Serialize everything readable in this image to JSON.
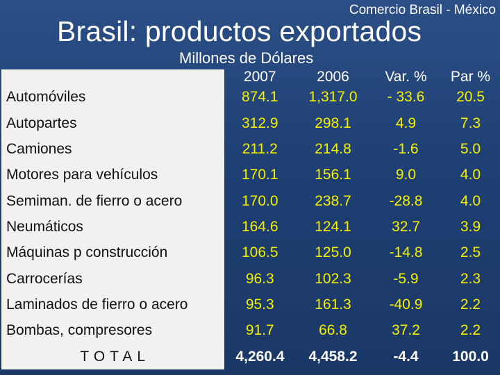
{
  "header": {
    "subtitle": "Comercio Brasil - México",
    "title": "Brasil: productos exportados",
    "unit": "Millones de Dólares"
  },
  "table": {
    "columns": [
      "",
      "2007",
      "2006",
      "Var. %",
      "Par %"
    ],
    "rows": [
      {
        "label": "Automóviles",
        "v2007": "874.1",
        "v2006": "1,317.0",
        "var": "- 33.6",
        "par": "20.5"
      },
      {
        "label": "Autopartes",
        "v2007": "312.9",
        "v2006": "298.1",
        "var": "4.9",
        "par": "7.3"
      },
      {
        "label": "Camiones",
        "v2007": "211.2",
        "v2006": "214.8",
        "var": "-1.6",
        "par": "5.0"
      },
      {
        "label": "Motores para vehículos",
        "v2007": "170.1",
        "v2006": "156.1",
        "var": "9.0",
        "par": "4.0"
      },
      {
        "label": "Semiman. de fierro o acero",
        "v2007": "170.0",
        "v2006": "238.7",
        "var": "-28.8",
        "par": "4.0"
      },
      {
        "label": "Neumáticos",
        "v2007": "164.6",
        "v2006": "124.1",
        "var": "32.7",
        "par": "3.9"
      },
      {
        "label": "Máquinas p construcción",
        "v2007": "106.5",
        "v2006": "125.0",
        "var": "-14.8",
        "par": "2.5"
      },
      {
        "label": "Carrocerías",
        "v2007": "96.3",
        "v2006": "102.3",
        "var": "-5.9",
        "par": "2.3"
      },
      {
        "label": "Laminados de fierro o acero",
        "v2007": "95.3",
        "v2006": "161.3",
        "var": "-40.9",
        "par": "2.2"
      },
      {
        "label": "Bombas, compresores",
        "v2007": "91.7",
        "v2006": "66.8",
        "var": "37.2",
        "par": "2.2"
      }
    ],
    "total": {
      "label": "TOTAL",
      "v2007": "4,260.4",
      "v2006": "4,458.2",
      "var": "-4.4",
      "par": "100.0"
    }
  },
  "colors": {
    "background": "#1e3f73",
    "values": "#f5f000",
    "label_panel": "#f1f1ef"
  }
}
